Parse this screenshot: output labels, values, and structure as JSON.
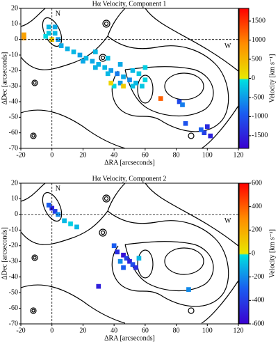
{
  "chart_data": [
    {
      "type": "scatter",
      "title": "Hα Velocity, Component 1",
      "xlabel": "ΔRA [arcseconds]",
      "ylabel": "ΔDec [arcseconds]",
      "colorbar_label": "Velocity [km s⁻¹]",
      "annotations": [
        "N",
        "W"
      ],
      "xlim": [
        -20,
        120
      ],
      "ylim": [
        -70,
        20
      ],
      "xticks": [
        -20,
        0,
        20,
        40,
        60,
        80,
        100,
        120
      ],
      "yticks": [
        -70,
        -60,
        -50,
        -40,
        -30,
        -20,
        -10,
        0,
        10,
        20
      ],
      "vline": 0,
      "hline": 0,
      "clim": [
        -1830,
        1830
      ],
      "cticks": [
        -1500,
        -1000,
        -500,
        0,
        500,
        1000,
        1500
      ],
      "x": [
        -18,
        -18,
        -2,
        2,
        -2,
        2,
        0,
        -4,
        4,
        6,
        10,
        14,
        18,
        22,
        26,
        30,
        34,
        38,
        42,
        46,
        50,
        54,
        58,
        20,
        28,
        36,
        44,
        52,
        40,
        38,
        46,
        36,
        44,
        52,
        56,
        60,
        60,
        28,
        70,
        82,
        84,
        86,
        100,
        98,
        102,
        96
      ],
      "y": [
        1,
        3,
        8,
        8,
        4,
        4,
        0,
        2,
        0,
        -4,
        -6,
        -8,
        -10,
        -12,
        -14,
        -16,
        -18,
        -20,
        -22,
        -24,
        -26,
        -28,
        -30,
        -14,
        -18,
        -22,
        -28,
        -30,
        -30,
        -28,
        -30,
        -12,
        -16,
        -20,
        -22,
        -26,
        -18,
        -8,
        -38,
        -40,
        -42,
        -54,
        -56,
        -60,
        -62,
        -58
      ],
      "values": [
        800,
        700,
        -300,
        -400,
        -200,
        -300,
        300,
        -100,
        -500,
        -400,
        -350,
        -300,
        -450,
        -300,
        -400,
        -350,
        -300,
        -500,
        -700,
        -400,
        -600,
        -300,
        -200,
        -400,
        -350,
        -300,
        -500,
        -250,
        -100,
        200,
        300,
        -250,
        -400,
        -300,
        -200,
        -100,
        -150,
        -300,
        1200,
        -1100,
        -700,
        -1000,
        -1400,
        -1200,
        -1500,
        -900
      ]
    },
    {
      "type": "scatter",
      "title": "Hα Velocity, Component 2",
      "xlabel": "ΔRA [arcseconds]",
      "ylabel": "ΔDec [arcseconds]",
      "colorbar_label": "Velocity [km s⁻¹]",
      "annotations": [
        "N",
        "W"
      ],
      "xlim": [
        -20,
        120
      ],
      "ylim": [
        -70,
        20
      ],
      "xticks": [
        -20,
        0,
        20,
        40,
        60,
        80,
        100,
        120
      ],
      "yticks": [
        -70,
        -60,
        -50,
        -40,
        -30,
        -20,
        -10,
        0,
        10,
        20
      ],
      "vline": 0,
      "hline": 0,
      "clim": [
        -600,
        600
      ],
      "cticks": [
        -600,
        -400,
        -200,
        0,
        200,
        400,
        600
      ],
      "x": [
        0,
        2,
        -2,
        4,
        8,
        12,
        16,
        40,
        42,
        46,
        48,
        50,
        52,
        44,
        54,
        46,
        56,
        30,
        88
      ],
      "y": [
        4,
        2,
        6,
        0,
        -4,
        -6,
        -8,
        -20,
        -24,
        -26,
        -28,
        -30,
        -32,
        -30,
        -34,
        -34,
        -28,
        -46,
        -48
      ],
      "values": [
        -500,
        -400,
        -300,
        -200,
        -100,
        -50,
        -100,
        -300,
        -450,
        -550,
        -400,
        -500,
        -350,
        -200,
        -450,
        -300,
        -100,
        -500,
        -200
      ]
    }
  ]
}
